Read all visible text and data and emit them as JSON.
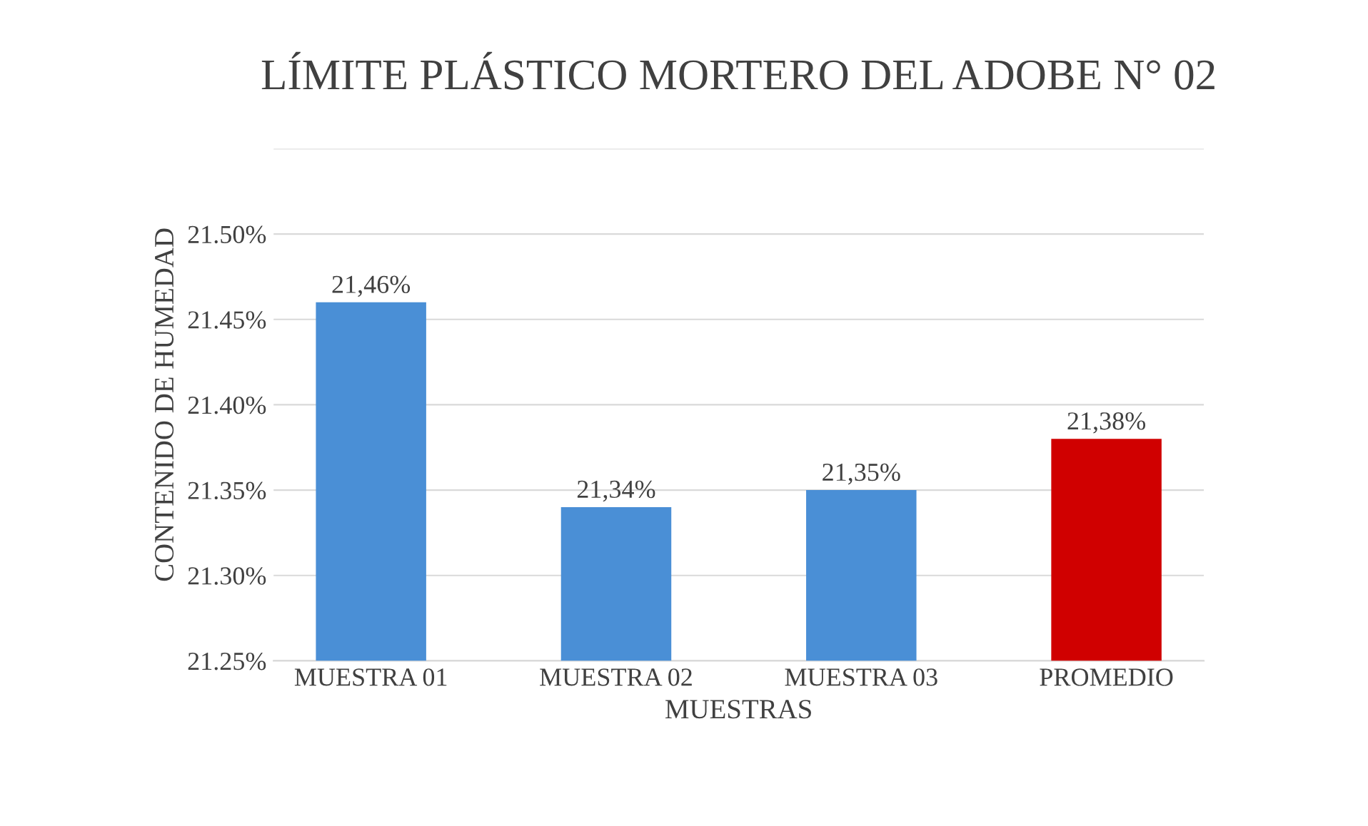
{
  "chart_data": {
    "type": "bar",
    "title": "LÍMITE PLÁSTICO MORTERO DEL ADOBE N° 02",
    "xlabel": "MUESTRAS",
    "ylabel": "CONTENIDO DE HUMEDAD",
    "categories": [
      "MUESTRA 01",
      "MUESTRA 02",
      "MUESTRA 03",
      "PROMEDIO"
    ],
    "values": [
      21.46,
      21.34,
      21.35,
      21.38
    ],
    "colors": [
      "#4a8fd6",
      "#4a8fd6",
      "#4a8fd6",
      "#d00000"
    ],
    "value_labels": [
      "21,46%",
      "21,34%",
      "21,35%",
      "21,38%"
    ],
    "ylim": [
      21.25,
      21.55
    ],
    "yticks": [
      {
        "value": 21.25,
        "label": "21.25%"
      },
      {
        "value": 21.3,
        "label": "21.30%"
      },
      {
        "value": 21.35,
        "label": "21.35%"
      },
      {
        "value": 21.4,
        "label": "21.40%"
      },
      {
        "value": 21.45,
        "label": "21.45%"
      },
      {
        "value": 21.5,
        "label": "21.50%"
      },
      {
        "value": 21.55,
        "label": null
      }
    ],
    "grid": "y"
  }
}
